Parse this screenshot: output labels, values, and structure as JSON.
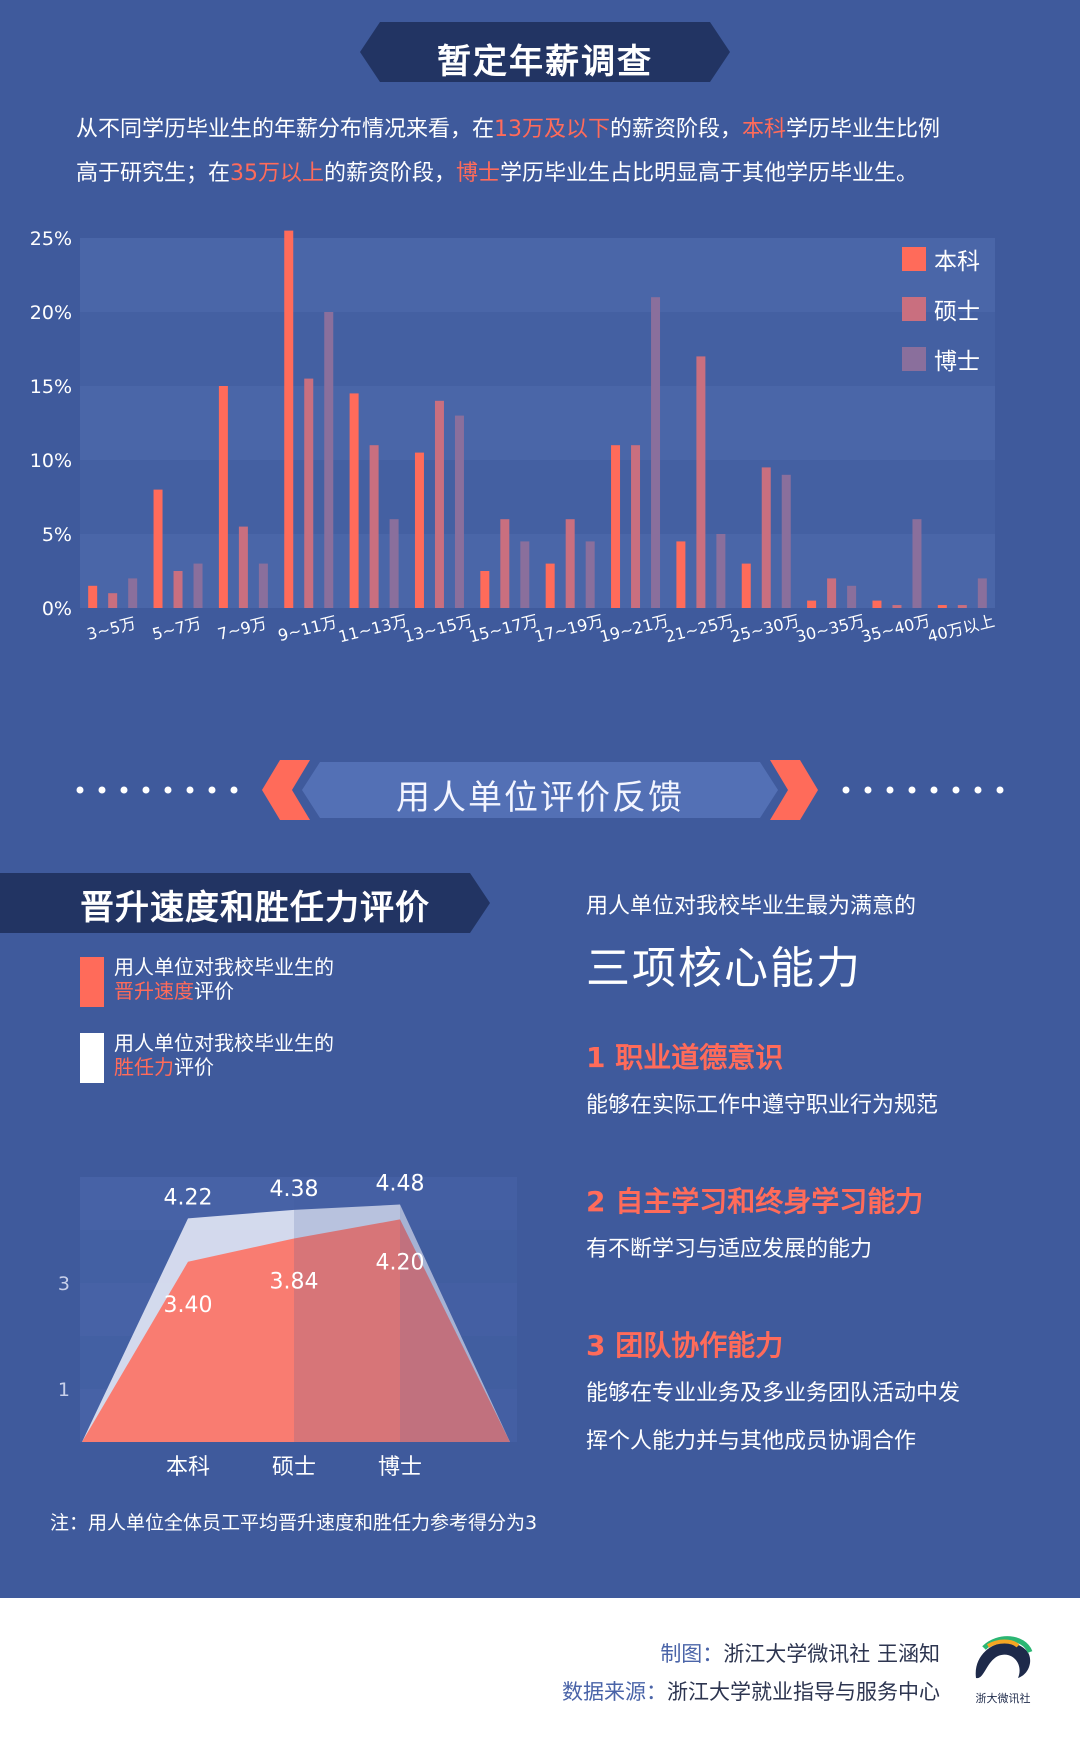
{
  "header": {
    "title": "暂定年薪调查"
  },
  "intro": {
    "line1_a": "从不同学历毕业生的年薪分布情况来看，在",
    "line1_hl1": "13万及以下",
    "line1_b": "的薪资阶段，",
    "line1_hl2": "本科",
    "line1_c": "学历毕业生比例",
    "line2_a": "高于研究生；在",
    "line2_hl1": "35万以上",
    "line2_b": "的薪资阶段，",
    "line2_hl2": "博士",
    "line2_c": "学历毕业生占比明显高于其他学历毕业生。"
  },
  "colors": {
    "bachelor": "#ff6b5a",
    "master": "#c96f7f",
    "phd": "#8a6f9c",
    "background": "#3f5a9c"
  },
  "chart_data": [
    {
      "type": "bar",
      "categories": [
        "3~5万",
        "5~7万",
        "7~9万",
        "9~11万",
        "11~13万",
        "13~15万",
        "15~17万",
        "17~19万",
        "19~21万",
        "21~25万",
        "25~30万",
        "30~35万",
        "35~40万",
        "40万以上"
      ],
      "series": [
        {
          "name": "本科",
          "values": [
            1.5,
            8,
            15,
            25.5,
            14.5,
            10.5,
            2.5,
            3,
            11,
            4.5,
            3,
            0.5,
            0.5,
            0.2
          ]
        },
        {
          "name": "硕士",
          "values": [
            1,
            2.5,
            5.5,
            15.5,
            11,
            14,
            6,
            6,
            11,
            17,
            9.5,
            2,
            0.2,
            0.2
          ]
        },
        {
          "name": "博士",
          "values": [
            2,
            3,
            3,
            20,
            6,
            13,
            4.5,
            4.5,
            21,
            5,
            9,
            1.5,
            6,
            2
          ]
        }
      ],
      "yticks": [
        "0%",
        "5%",
        "10%",
        "15%",
        "20%",
        "25%"
      ],
      "ylim": [
        0,
        25
      ],
      "legend": "top-right"
    },
    {
      "type": "area",
      "categories": [
        "本科",
        "硕士",
        "博士"
      ],
      "series": [
        {
          "name": "晋升速度",
          "values": [
            3.4,
            3.84,
            4.2
          ],
          "labels": [
            "3.40",
            "3.84",
            "4.20"
          ]
        },
        {
          "name": "胜任力",
          "values": [
            4.22,
            4.38,
            4.48
          ],
          "labels": [
            "4.22",
            "4.38",
            "4.48"
          ]
        }
      ],
      "yticks": [
        "1",
        "3"
      ],
      "ylim": [
        0,
        5
      ]
    }
  ],
  "divider": {
    "label": "用人单位评价反馈"
  },
  "section2": {
    "title": "晋升速度和胜任力评价",
    "legend": [
      {
        "line1": "用人单位对我校毕业生的",
        "hl": "晋升速度",
        "rest": "评价"
      },
      {
        "line1": "用人单位对我校毕业生的",
        "hl": "胜任力",
        "rest": "评价"
      }
    ],
    "note": "注：用人单位全体员工平均晋升速度和胜任力参考得分为3"
  },
  "abilities": {
    "subtitle": "用人单位对我校毕业生最为满意的",
    "title": "三项核心能力",
    "items": [
      {
        "title": "1 职业道德意识",
        "desc": [
          "能够在实际工作中遵守职业行为规范"
        ]
      },
      {
        "title": "2 自主学习和终身学习能力",
        "desc": [
          "有不断学习与适应发展的能力"
        ]
      },
      {
        "title": "3 团队协作能力",
        "desc": [
          "能够在专业业务及多业务团队活动中发",
          "挥个人能力并与其他成员协调合作"
        ]
      }
    ]
  },
  "footer": {
    "credit_label": "制图：",
    "credit_value": "浙江大学微讯社 王涵知",
    "source_label": "数据来源：",
    "source_value": "浙江大学就业指导与服务中心",
    "logo_text": "浙大微讯社"
  }
}
